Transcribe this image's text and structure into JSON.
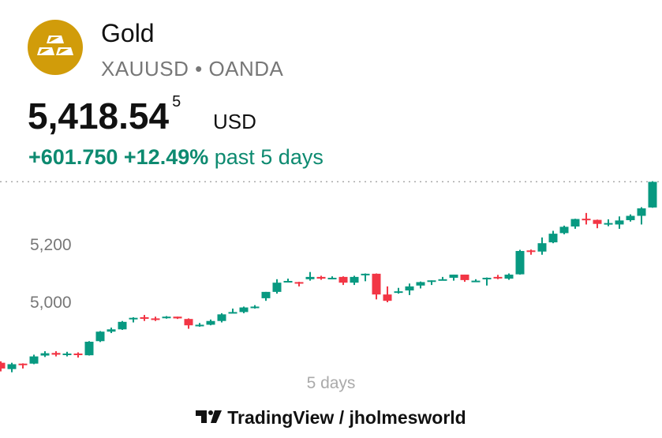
{
  "header": {
    "name": "Gold",
    "symbol": "XAUUSD",
    "separator": "•",
    "exchange": "OANDA",
    "logo_icon": "gold-bars-icon",
    "logo_color": "#d19c0a"
  },
  "quote": {
    "price": "5,418.54",
    "price_extra_digit": "5",
    "currency": "USD",
    "change": "+601.750",
    "change_pct": "+12.49%",
    "period_label": "past 5 days"
  },
  "chart_data": {
    "type": "candlestick",
    "title": "XAUUSD",
    "ylabel": "USD",
    "ylim": [
      4740,
      5440
    ],
    "yticks": [
      {
        "value": 5000,
        "label": "5,000"
      },
      {
        "value": 5200,
        "label": "5,200"
      }
    ],
    "last_price": 5418.545,
    "up_color": "#089981",
    "down_color": "#f23645",
    "range_label": "5 days",
    "ohlc": [
      [
        4790,
        4795,
        4760,
        4770
      ],
      [
        4768,
        4790,
        4757,
        4785
      ],
      [
        4787,
        4788,
        4770,
        4785
      ],
      [
        4787,
        4818,
        4785,
        4812
      ],
      [
        4815,
        4830,
        4810,
        4823
      ],
      [
        4824,
        4830,
        4812,
        4818
      ],
      [
        4818,
        4828,
        4812,
        4822
      ],
      [
        4822,
        4826,
        4808,
        4817
      ],
      [
        4816,
        4865,
        4815,
        4863
      ],
      [
        4865,
        4900,
        4862,
        4898
      ],
      [
        4898,
        4912,
        4893,
        4906
      ],
      [
        4906,
        4935,
        4904,
        4932
      ],
      [
        4946,
        4948,
        4930,
        4946
      ],
      [
        4948,
        4956,
        4935,
        4946
      ],
      [
        4944,
        4950,
        4935,
        4940
      ],
      [
        4945,
        4952,
        4943,
        4950
      ],
      [
        4950,
        4950,
        4942,
        4944
      ],
      [
        4942,
        4944,
        4908,
        4920
      ],
      [
        4920,
        4928,
        4915,
        4922
      ],
      [
        4922,
        4940,
        4920,
        4935
      ],
      [
        4935,
        4962,
        4930,
        4958
      ],
      [
        4964,
        4978,
        4964,
        4966
      ],
      [
        4966,
        4985,
        4962,
        4982
      ],
      [
        4983,
        4990,
        4978,
        4985
      ],
      [
        5014,
        5036,
        5005,
        5036
      ],
      [
        5036,
        5080,
        5030,
        5068
      ],
      [
        5074,
        5082,
        5070,
        5074
      ],
      [
        5070,
        5071,
        5055,
        5068
      ],
      [
        5080,
        5105,
        5075,
        5088
      ],
      [
        5088,
        5092,
        5078,
        5082
      ],
      [
        5085,
        5090,
        5080,
        5085
      ],
      [
        5088,
        5090,
        5060,
        5068
      ],
      [
        5068,
        5092,
        5060,
        5088
      ],
      [
        5094,
        5100,
        5073,
        5099
      ],
      [
        5099,
        5100,
        5010,
        5027
      ],
      [
        5027,
        5055,
        5000,
        5005
      ],
      [
        5038,
        5050,
        5030,
        5038
      ],
      [
        5041,
        5065,
        5025,
        5055
      ],
      [
        5058,
        5072,
        5048,
        5070
      ],
      [
        5076,
        5076,
        5060,
        5076
      ],
      [
        5079,
        5088,
        5077,
        5080
      ],
      [
        5085,
        5096,
        5075,
        5096
      ],
      [
        5096,
        5096,
        5071,
        5077
      ],
      [
        5075,
        5080,
        5072,
        5075
      ],
      [
        5085,
        5086,
        5058,
        5085
      ],
      [
        5088,
        5095,
        5080,
        5084
      ],
      [
        5082,
        5100,
        5078,
        5096
      ],
      [
        5097,
        5182,
        5096,
        5178
      ],
      [
        5180,
        5183,
        5165,
        5176
      ],
      [
        5176,
        5225,
        5165,
        5205
      ],
      [
        5208,
        5248,
        5205,
        5238
      ],
      [
        5240,
        5266,
        5236,
        5262
      ],
      [
        5263,
        5290,
        5255,
        5289
      ],
      [
        5290,
        5310,
        5270,
        5285
      ],
      [
        5286,
        5287,
        5257,
        5272
      ],
      [
        5275,
        5288,
        5264,
        5275
      ],
      [
        5270,
        5298,
        5255,
        5284
      ],
      [
        5285,
        5305,
        5280,
        5300
      ],
      [
        5300,
        5330,
        5270,
        5326
      ],
      [
        5329,
        5420,
        5328,
        5418
      ]
    ]
  },
  "footer": {
    "brand": "TradingView",
    "separator": "/",
    "author": "jholmesworld"
  }
}
